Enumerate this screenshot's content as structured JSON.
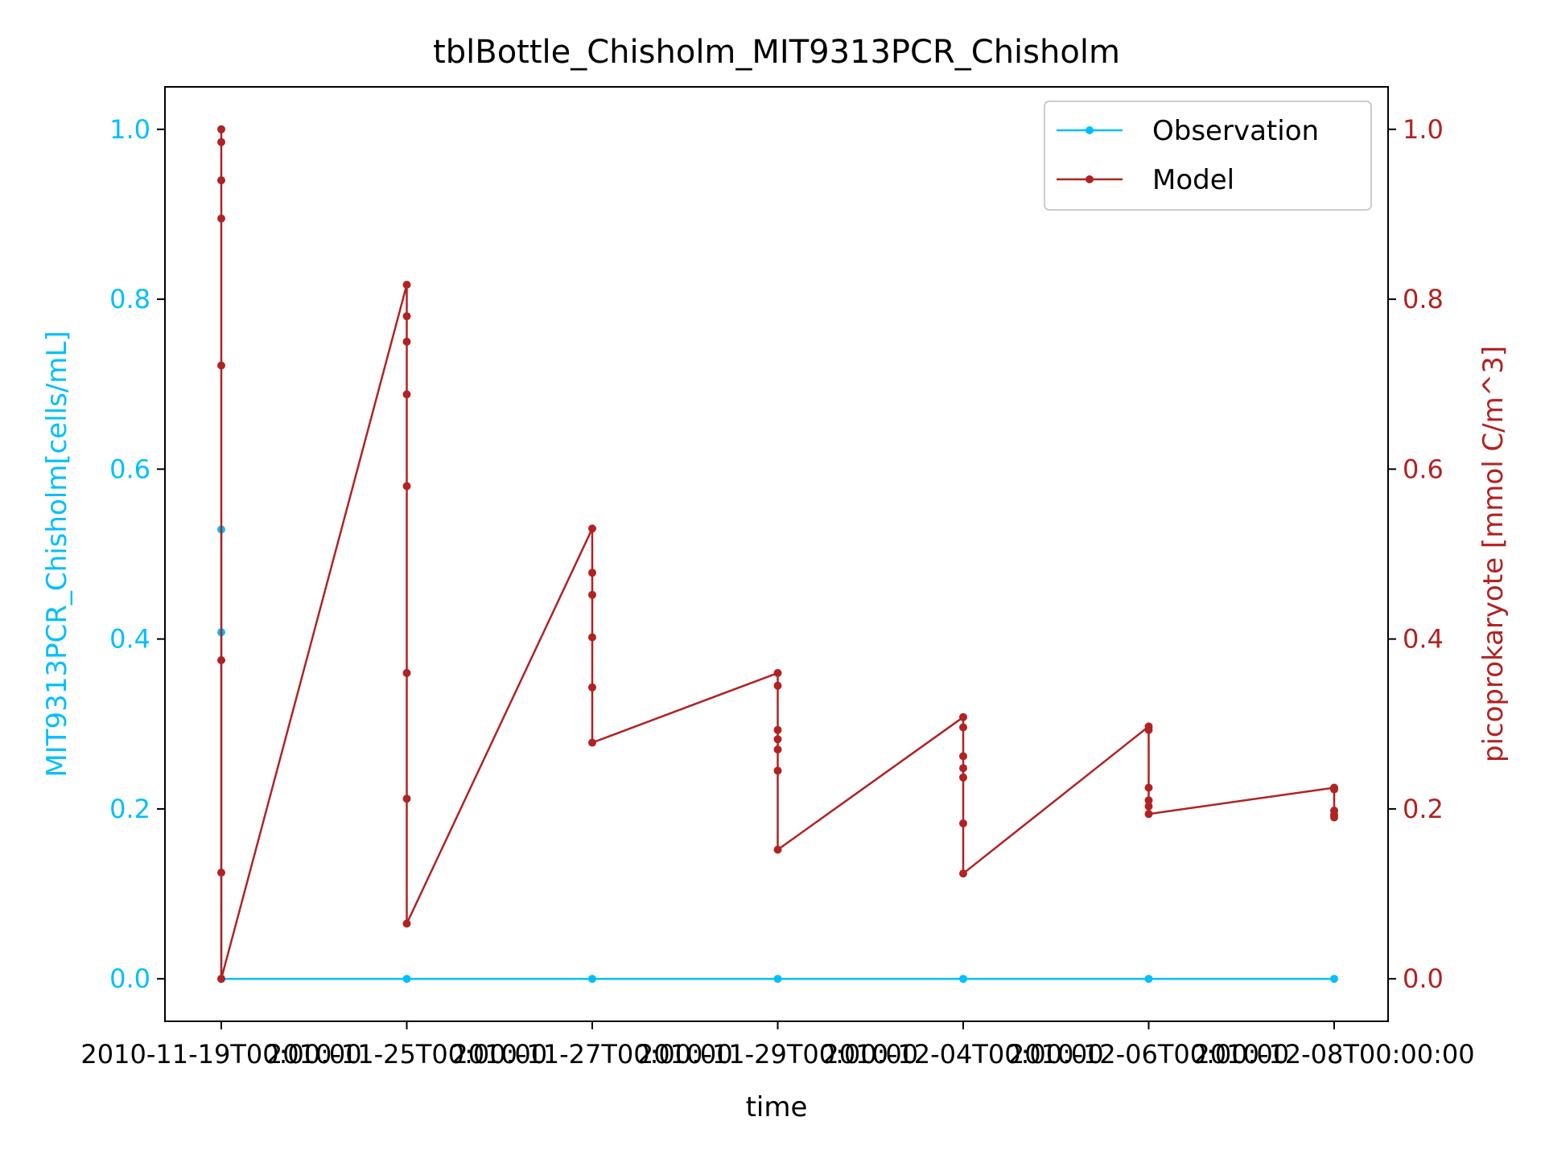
{
  "chart_data": {
    "type": "line",
    "title": "tblBottle_Chisholm_MIT9313PCR_Chisholm",
    "xlabel": "time",
    "ylabel_left": "MIT9313PCR_Chisholm[cells/mL]",
    "ylabel_right": "picoprokaryote [mmol C/m^3]",
    "x_ticks": [
      "2010-11-19T00:00:00",
      "2010-11-25T00:00:00",
      "2010-11-27T00:00:00",
      "2010-11-29T00:00:00",
      "2010-12-04T00:00:00",
      "2010-12-06T00:00:00",
      "2010-12-08T00:00:00"
    ],
    "y_ticks_left": [
      "0.0",
      "0.2",
      "0.4",
      "0.6",
      "0.8",
      "1.0"
    ],
    "y_ticks_right": [
      "0.0",
      "0.2",
      "0.4",
      "0.6",
      "0.8",
      "1.0"
    ],
    "ylim_left": [
      -0.05,
      1.05
    ],
    "ylim_right": [
      -0.05,
      1.05
    ],
    "grid": false,
    "legend_position": "top-right",
    "colors": {
      "observation": "#00bfff",
      "model": "#b22222"
    },
    "series": [
      {
        "name": "Observation",
        "axis": "left",
        "points": [
          [
            "2010-11-19T00:00:00",
            0.529
          ],
          [
            "2010-11-19T00:00:00",
            0.408
          ],
          [
            "2010-11-19T00:00:00",
            0.0
          ],
          [
            "2010-11-25T00:00:00",
            0.0
          ],
          [
            "2010-11-27T00:00:00",
            0.0
          ],
          [
            "2010-11-29T00:00:00",
            0.0
          ],
          [
            "2010-12-04T00:00:00",
            0.0
          ],
          [
            "2010-12-06T00:00:00",
            0.0
          ],
          [
            "2010-12-08T00:00:00",
            0.0
          ]
        ]
      },
      {
        "name": "Model",
        "axis": "right",
        "points": [
          [
            "2010-11-19T00:00:00",
            1.0
          ],
          [
            "2010-11-19T00:00:00",
            0.985
          ],
          [
            "2010-11-19T00:00:00",
            0.94
          ],
          [
            "2010-11-19T00:00:00",
            0.895
          ],
          [
            "2010-11-19T00:00:00",
            0.722
          ],
          [
            "2010-11-19T00:00:00",
            0.375
          ],
          [
            "2010-11-19T00:00:00",
            0.125
          ],
          [
            "2010-11-19T00:00:00",
            0.0
          ],
          [
            "2010-11-25T00:00:00",
            0.817
          ],
          [
            "2010-11-25T00:00:00",
            0.78
          ],
          [
            "2010-11-25T00:00:00",
            0.75
          ],
          [
            "2010-11-25T00:00:00",
            0.688
          ],
          [
            "2010-11-25T00:00:00",
            0.58
          ],
          [
            "2010-11-25T00:00:00",
            0.36
          ],
          [
            "2010-11-25T00:00:00",
            0.212
          ],
          [
            "2010-11-25T00:00:00",
            0.065
          ],
          [
            "2010-11-27T00:00:00",
            0.53
          ],
          [
            "2010-11-27T00:00:00",
            0.478
          ],
          [
            "2010-11-27T00:00:00",
            0.452
          ],
          [
            "2010-11-27T00:00:00",
            0.402
          ],
          [
            "2010-11-27T00:00:00",
            0.343
          ],
          [
            "2010-11-27T00:00:00",
            0.278
          ],
          [
            "2010-11-29T00:00:00",
            0.36
          ],
          [
            "2010-11-29T00:00:00",
            0.345
          ],
          [
            "2010-11-29T00:00:00",
            0.293
          ],
          [
            "2010-11-29T00:00:00",
            0.282
          ],
          [
            "2010-11-29T00:00:00",
            0.27
          ],
          [
            "2010-11-29T00:00:00",
            0.245
          ],
          [
            "2010-11-29T00:00:00",
            0.152
          ],
          [
            "2010-12-04T00:00:00",
            0.308
          ],
          [
            "2010-12-04T00:00:00",
            0.296
          ],
          [
            "2010-12-04T00:00:00",
            0.262
          ],
          [
            "2010-12-04T00:00:00",
            0.248
          ],
          [
            "2010-12-04T00:00:00",
            0.237
          ],
          [
            "2010-12-04T00:00:00",
            0.183
          ],
          [
            "2010-12-04T00:00:00",
            0.124
          ],
          [
            "2010-12-06T00:00:00",
            0.297
          ],
          [
            "2010-12-06T00:00:00",
            0.293
          ],
          [
            "2010-12-06T00:00:00",
            0.225
          ],
          [
            "2010-12-06T00:00:00",
            0.21
          ],
          [
            "2010-12-06T00:00:00",
            0.203
          ],
          [
            "2010-12-06T00:00:00",
            0.194
          ],
          [
            "2010-12-08T00:00:00",
            0.225
          ],
          [
            "2010-12-08T00:00:00",
            0.223
          ],
          [
            "2010-12-08T00:00:00",
            0.198
          ],
          [
            "2010-12-08T00:00:00",
            0.193
          ],
          [
            "2010-12-08T00:00:00",
            0.19
          ]
        ]
      }
    ]
  }
}
